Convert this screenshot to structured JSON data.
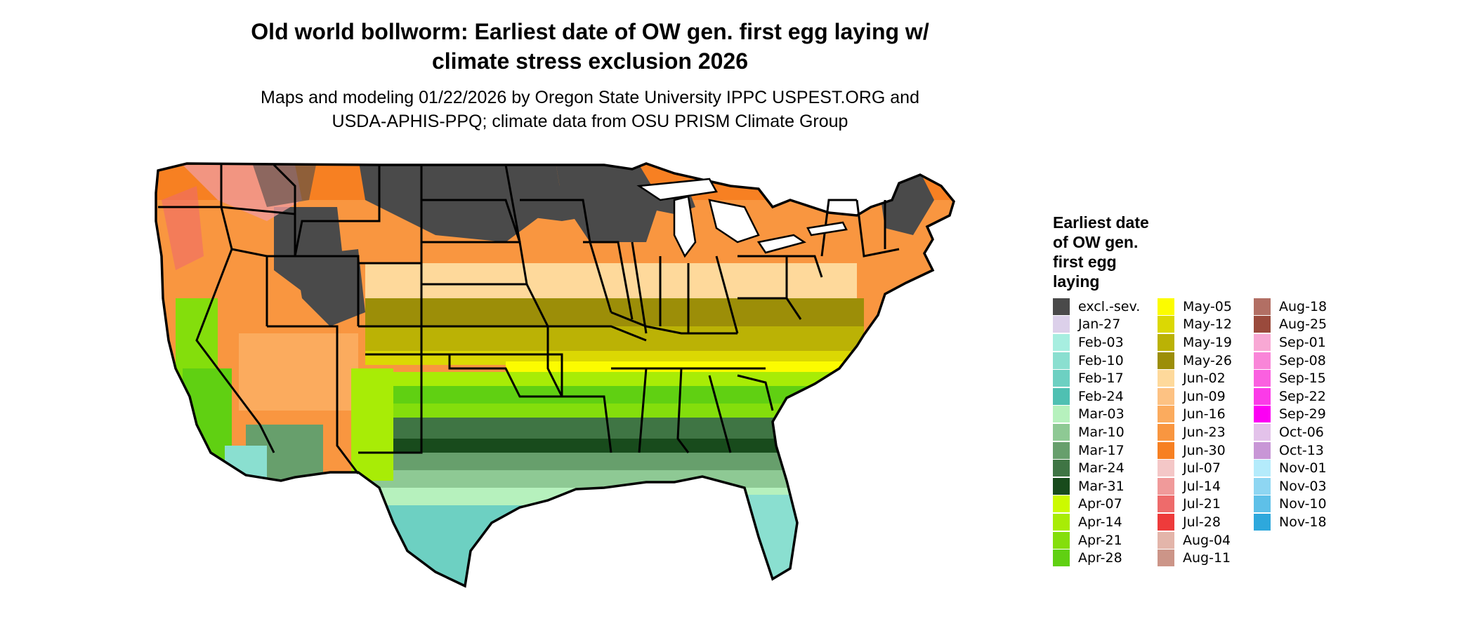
{
  "title_line1": "Old world bollworm: Earliest date of OW gen. first egg laying w/",
  "title_line2": "climate stress exclusion 2026",
  "subtitle_line1": "Maps and modeling 01/22/2026 by Oregon State University IPPC USPEST.ORG and",
  "subtitle_line2": "USDA-APHIS-PPQ; climate data from OSU PRISM Climate Group",
  "legend": {
    "title_lines": [
      "Earliest date",
      "of OW gen.",
      "first egg",
      "laying"
    ],
    "columns": [
      [
        {
          "label": "excl.-sev.",
          "color": "#4a4a4a"
        },
        {
          "label": "Jan-27",
          "color": "#dcd0ea"
        },
        {
          "label": "Feb-03",
          "color": "#a7eee0"
        },
        {
          "label": "Feb-10",
          "color": "#8adfd0"
        },
        {
          "label": "Feb-17",
          "color": "#6dd0c2"
        },
        {
          "label": "Feb-24",
          "color": "#4fc0b2"
        },
        {
          "label": "Mar-03",
          "color": "#b6f1bd"
        },
        {
          "label": "Mar-10",
          "color": "#8ec994"
        },
        {
          "label": "Mar-17",
          "color": "#679f6c"
        },
        {
          "label": "Mar-24",
          "color": "#3f7544"
        },
        {
          "label": "Mar-31",
          "color": "#184b1c"
        },
        {
          "label": "Apr-07",
          "color": "#ccfa00"
        },
        {
          "label": "Apr-14",
          "color": "#a8ec06"
        },
        {
          "label": "Apr-21",
          "color": "#84de0c"
        },
        {
          "label": "Apr-28",
          "color": "#60d012"
        }
      ],
      [
        {
          "label": "May-05",
          "color": "#fcfc00"
        },
        {
          "label": "May-12",
          "color": "#dbd803"
        },
        {
          "label": "May-19",
          "color": "#bbb205"
        },
        {
          "label": "May-26",
          "color": "#9c8e08"
        },
        {
          "label": "Jun-02",
          "color": "#fed99b"
        },
        {
          "label": "Jun-09",
          "color": "#fdc283"
        },
        {
          "label": "Jun-16",
          "color": "#fbab5e"
        },
        {
          "label": "Jun-23",
          "color": "#f99640"
        },
        {
          "label": "Jun-30",
          "color": "#f78022"
        },
        {
          "label": "Jul-07",
          "color": "#f4c7c7"
        },
        {
          "label": "Jul-14",
          "color": "#f09a9a"
        },
        {
          "label": "Jul-21",
          "color": "#ee6b6b"
        },
        {
          "label": "Jul-28",
          "color": "#ee3b3b"
        },
        {
          "label": "Aug-04",
          "color": "#e3b5aa"
        },
        {
          "label": "Aug-11",
          "color": "#cc9588"
        }
      ],
      [
        {
          "label": "Aug-18",
          "color": "#b26f64"
        },
        {
          "label": "Aug-25",
          "color": "#9a4a3c"
        },
        {
          "label": "Sep-01",
          "color": "#f8a8d4"
        },
        {
          "label": "Sep-08",
          "color": "#f985d8"
        },
        {
          "label": "Sep-15",
          "color": "#fa60e0"
        },
        {
          "label": "Sep-22",
          "color": "#fb3be8"
        },
        {
          "label": "Sep-29",
          "color": "#fc00f4"
        },
        {
          "label": "Oct-06",
          "color": "#e3c2ea"
        },
        {
          "label": "Oct-13",
          "color": "#c896d6"
        },
        {
          "label": "Nov-01",
          "color": "#b4ebfb"
        },
        {
          "label": "Nov-03",
          "color": "#8ed6f2"
        },
        {
          "label": "Nov-10",
          "color": "#5ec0e8"
        },
        {
          "label": "Nov-18",
          "color": "#2ea8dc"
        }
      ]
    ]
  }
}
